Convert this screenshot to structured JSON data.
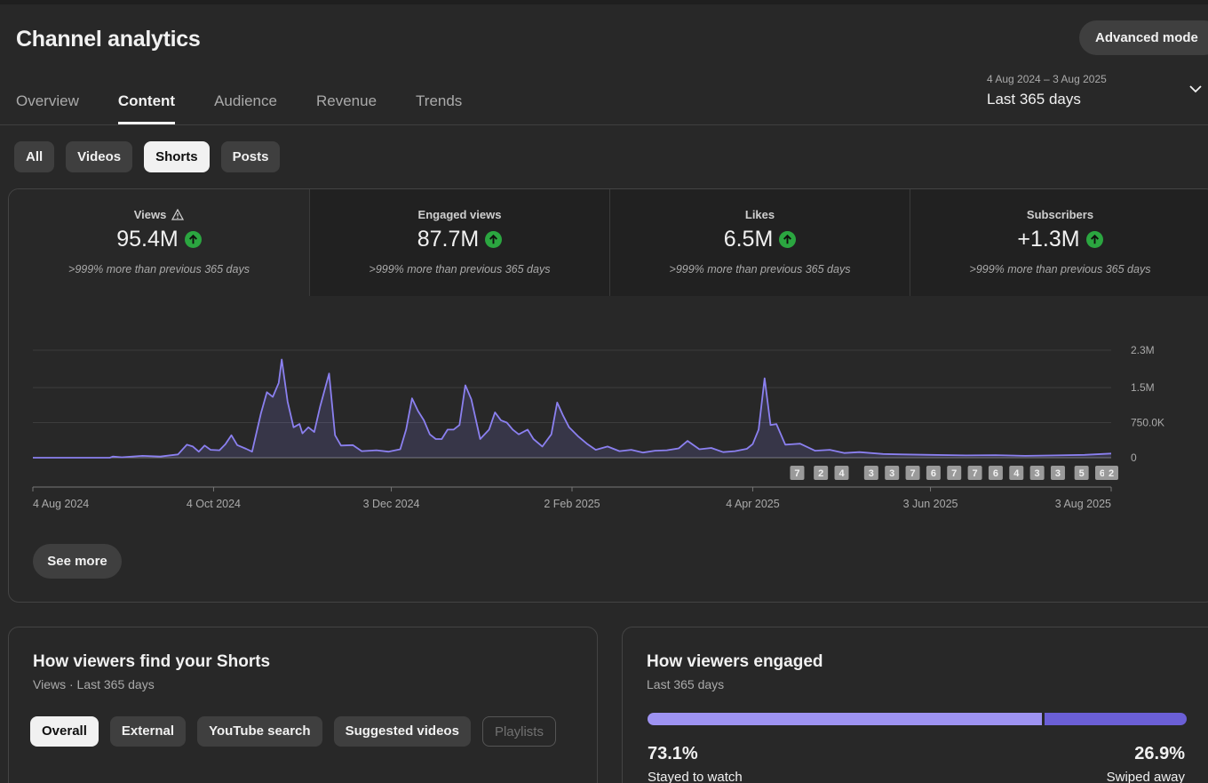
{
  "header": {
    "title": "Channel analytics",
    "advanced_mode": "Advanced mode"
  },
  "tabs": [
    {
      "label": "Overview",
      "active": false
    },
    {
      "label": "Content",
      "active": true
    },
    {
      "label": "Audience",
      "active": false
    },
    {
      "label": "Revenue",
      "active": false
    },
    {
      "label": "Trends",
      "active": false
    }
  ],
  "date_range": {
    "range": "4 Aug 2024 – 3 Aug 2025",
    "label": "Last 365 days"
  },
  "content_filters": [
    {
      "label": "All",
      "active": false
    },
    {
      "label": "Videos",
      "active": false
    },
    {
      "label": "Shorts",
      "active": true
    },
    {
      "label": "Posts",
      "active": false
    }
  ],
  "metrics": [
    {
      "label": "Views",
      "value": "95.4M",
      "note": ">999% more than previous 365 days",
      "warning": true,
      "trend": "up"
    },
    {
      "label": "Engaged views",
      "value": "87.7M",
      "note": ">999% more than previous 365 days",
      "warning": false,
      "trend": "up"
    },
    {
      "label": "Likes",
      "value": "6.5M",
      "note": ">999% more than previous 365 days",
      "warning": false,
      "trend": "up"
    },
    {
      "label": "Subscribers",
      "value": "+1.3M",
      "note": ">999% more than previous 365 days",
      "warning": false,
      "trend": "up"
    }
  ],
  "colors": {
    "series": "#8b80f0",
    "positive": "#2ba640"
  },
  "chart_data": {
    "type": "line",
    "title": "",
    "xlabel": "",
    "ylabel": "",
    "y_ticks": [
      "2.3M",
      "1.5M",
      "750.0K",
      "0"
    ],
    "x_ticks": [
      "4 Aug 2024",
      "4 Oct 2024",
      "3 Dec 2024",
      "2 Feb 2025",
      "4 Apr 2025",
      "3 Jun 2025",
      "3 Aug 2025"
    ],
    "ylim": [
      0,
      2300000
    ],
    "x_start": "2024-08-04",
    "x_end": "2025-08-03",
    "grid": true,
    "series": [
      {
        "name": "",
        "points": [
          [
            "2024-08-04",
            0
          ],
          [
            "2024-08-30",
            0
          ],
          [
            "2024-08-31",
            25000
          ],
          [
            "2024-09-03",
            10000
          ],
          [
            "2024-09-10",
            40000
          ],
          [
            "2024-09-16",
            25000
          ],
          [
            "2024-09-22",
            70000
          ],
          [
            "2024-09-25",
            280000
          ],
          [
            "2024-09-27",
            240000
          ],
          [
            "2024-09-29",
            130000
          ],
          [
            "2024-10-01",
            260000
          ],
          [
            "2024-10-03",
            170000
          ],
          [
            "2024-10-06",
            160000
          ],
          [
            "2024-10-08",
            290000
          ],
          [
            "2024-10-10",
            480000
          ],
          [
            "2024-10-12",
            270000
          ],
          [
            "2024-10-15",
            190000
          ],
          [
            "2024-10-17",
            130000
          ],
          [
            "2024-10-20",
            950000
          ],
          [
            "2024-10-22",
            1400000
          ],
          [
            "2024-10-24",
            1300000
          ],
          [
            "2024-10-26",
            1600000
          ],
          [
            "2024-10-27",
            2100000
          ],
          [
            "2024-10-29",
            1200000
          ],
          [
            "2024-10-31",
            650000
          ],
          [
            "2024-11-02",
            720000
          ],
          [
            "2024-11-03",
            520000
          ],
          [
            "2024-11-05",
            650000
          ],
          [
            "2024-11-07",
            550000
          ],
          [
            "2024-11-09",
            1100000
          ],
          [
            "2024-11-12",
            1800000
          ],
          [
            "2024-11-14",
            480000
          ],
          [
            "2024-11-16",
            260000
          ],
          [
            "2024-11-20",
            270000
          ],
          [
            "2024-11-23",
            140000
          ],
          [
            "2024-11-28",
            160000
          ],
          [
            "2024-12-02",
            130000
          ],
          [
            "2024-12-06",
            180000
          ],
          [
            "2024-12-08",
            600000
          ],
          [
            "2024-12-10",
            1270000
          ],
          [
            "2024-12-12",
            1000000
          ],
          [
            "2024-12-14",
            800000
          ],
          [
            "2024-12-16",
            500000
          ],
          [
            "2024-12-18",
            400000
          ],
          [
            "2024-12-20",
            400000
          ],
          [
            "2024-12-22",
            600000
          ],
          [
            "2024-12-24",
            600000
          ],
          [
            "2024-12-26",
            700000
          ],
          [
            "2024-12-28",
            1550000
          ],
          [
            "2024-12-30",
            1250000
          ],
          [
            "2025-01-02",
            400000
          ],
          [
            "2025-01-05",
            600000
          ],
          [
            "2025-01-07",
            970000
          ],
          [
            "2025-01-09",
            800000
          ],
          [
            "2025-01-11",
            750000
          ],
          [
            "2025-01-13",
            600000
          ],
          [
            "2025-01-15",
            500000
          ],
          [
            "2025-01-18",
            600000
          ],
          [
            "2025-01-20",
            400000
          ],
          [
            "2025-01-23",
            240000
          ],
          [
            "2025-01-26",
            500000
          ],
          [
            "2025-01-28",
            1180000
          ],
          [
            "2025-01-30",
            900000
          ],
          [
            "2025-02-01",
            650000
          ],
          [
            "2025-02-04",
            460000
          ],
          [
            "2025-02-07",
            300000
          ],
          [
            "2025-02-10",
            170000
          ],
          [
            "2025-02-14",
            240000
          ],
          [
            "2025-02-18",
            140000
          ],
          [
            "2025-02-22",
            170000
          ],
          [
            "2025-02-26",
            110000
          ],
          [
            "2025-03-02",
            150000
          ],
          [
            "2025-03-06",
            160000
          ],
          [
            "2025-03-10",
            200000
          ],
          [
            "2025-03-13",
            360000
          ],
          [
            "2025-03-17",
            180000
          ],
          [
            "2025-03-21",
            210000
          ],
          [
            "2025-03-25",
            120000
          ],
          [
            "2025-03-29",
            140000
          ],
          [
            "2025-04-02",
            190000
          ],
          [
            "2025-04-04",
            290000
          ],
          [
            "2025-04-06",
            600000
          ],
          [
            "2025-04-08",
            1700000
          ],
          [
            "2025-04-10",
            700000
          ],
          [
            "2025-04-12",
            720000
          ],
          [
            "2025-04-15",
            280000
          ],
          [
            "2025-04-20",
            300000
          ],
          [
            "2025-04-25",
            150000
          ],
          [
            "2025-04-30",
            170000
          ],
          [
            "2025-05-05",
            100000
          ],
          [
            "2025-05-10",
            120000
          ],
          [
            "2025-05-18",
            80000
          ],
          [
            "2025-05-25",
            70000
          ],
          [
            "2025-06-03",
            60000
          ],
          [
            "2025-06-15",
            50000
          ],
          [
            "2025-06-25",
            55000
          ],
          [
            "2025-07-05",
            40000
          ],
          [
            "2025-07-15",
            50000
          ],
          [
            "2025-07-25",
            60000
          ],
          [
            "2025-08-03",
            90000
          ]
        ]
      }
    ],
    "annotations": [
      {
        "x": "2025-04-19",
        "label": "7"
      },
      {
        "x": "2025-04-27",
        "label": "2"
      },
      {
        "x": "2025-05-04",
        "label": "4"
      },
      {
        "x": "2025-05-14",
        "label": "3"
      },
      {
        "x": "2025-05-21",
        "label": "3"
      },
      {
        "x": "2025-05-28",
        "label": "7"
      },
      {
        "x": "2025-06-04",
        "label": "6"
      },
      {
        "x": "2025-06-11",
        "label": "7"
      },
      {
        "x": "2025-06-18",
        "label": "7"
      },
      {
        "x": "2025-06-25",
        "label": "6"
      },
      {
        "x": "2025-07-02",
        "label": "4"
      },
      {
        "x": "2025-07-09",
        "label": "3"
      },
      {
        "x": "2025-07-16",
        "label": "3"
      },
      {
        "x": "2025-07-24",
        "label": "5"
      },
      {
        "x": "2025-07-31",
        "label": "6"
      },
      {
        "x": "2025-08-03",
        "label": "2"
      }
    ]
  },
  "see_more": "See more",
  "traffic": {
    "title": "How viewers find your Shorts",
    "subtitle": "Views · Last 365 days",
    "chips": [
      {
        "label": "Overall",
        "state": "active"
      },
      {
        "label": "External",
        "state": "normal"
      },
      {
        "label": "YouTube search",
        "state": "normal"
      },
      {
        "label": "Suggested videos",
        "state": "normal"
      },
      {
        "label": "Playlists",
        "state": "disabled"
      }
    ]
  },
  "engagement": {
    "title": "How viewers engaged",
    "subtitle": "Last 365 days",
    "stayed_pct": "73.1%",
    "stayed_label": "Stayed to watch",
    "swiped_pct": "26.9%",
    "swiped_label": "Swiped away",
    "stayed_fraction": 0.731
  }
}
